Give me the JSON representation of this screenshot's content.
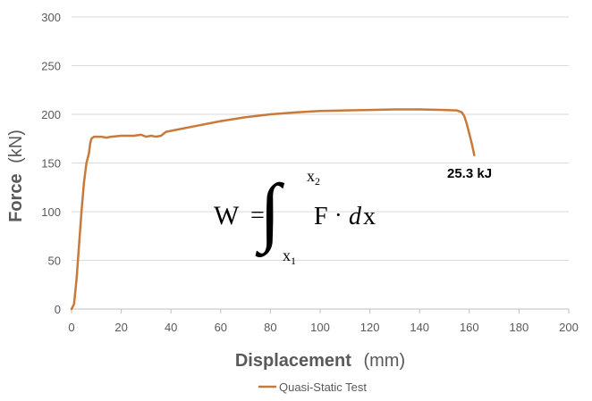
{
  "chart_data": {
    "type": "line",
    "xlabel": "Displacement",
    "xlabel_unit": "(mm)",
    "ylabel": "Force",
    "ylabel_unit": "(kN)",
    "xlim": [
      0,
      200
    ],
    "ylim": [
      0,
      300
    ],
    "xticks": [
      "0",
      "20",
      "40",
      "60",
      "80",
      "100",
      "120",
      "140",
      "160",
      "180",
      "200"
    ],
    "yticks": [
      "0",
      "50",
      "100",
      "150",
      "200",
      "250",
      "300"
    ],
    "grid": "horizontal",
    "legend_position": "bottom",
    "series": [
      {
        "name": "Quasi-Static Test",
        "color": "#C9793A",
        "x": [
          0,
          1,
          2,
          3,
          4,
          5,
          6,
          7,
          7.5,
          8,
          9,
          10,
          12,
          14,
          16,
          20,
          25,
          28,
          30,
          32,
          34,
          36,
          38,
          40,
          50,
          60,
          70,
          80,
          90,
          100,
          110,
          120,
          130,
          140,
          150,
          155,
          157,
          158,
          159,
          160,
          161,
          162
        ],
        "y": [
          0,
          5,
          30,
          65,
          100,
          130,
          150,
          160,
          170,
          175,
          177,
          177,
          177,
          176,
          177,
          178,
          178,
          179,
          177,
          178,
          177,
          178,
          182,
          183,
          188,
          193,
          197,
          200,
          202,
          203.5,
          204,
          204.5,
          205,
          205,
          204.5,
          204,
          202,
          198,
          190,
          180,
          170,
          158
        ]
      }
    ],
    "annotation": "25.3 kJ"
  },
  "equation": {
    "lhs": "W",
    "equals": "=",
    "integral": "∫",
    "upper": "x",
    "upper_sub": "2",
    "lower": "x",
    "lower_sub": "1",
    "integrand": "F",
    "dot": "·",
    "d": "d",
    "var": "x"
  }
}
